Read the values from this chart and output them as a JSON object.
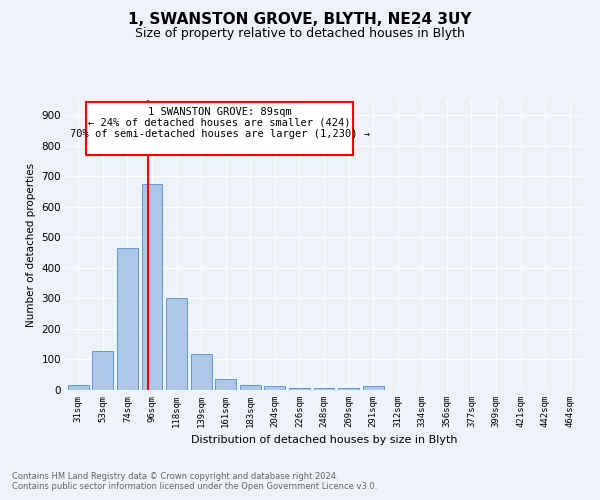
{
  "title": "1, SWANSTON GROVE, BLYTH, NE24 3UY",
  "subtitle": "Size of property relative to detached houses in Blyth",
  "xlabel": "Distribution of detached houses by size in Blyth",
  "ylabel": "Number of detached properties",
  "footnote1": "Contains HM Land Registry data © Crown copyright and database right 2024.",
  "footnote2": "Contains public sector information licensed under the Open Government Licence v3.0.",
  "annotation_line1": "1 SWANSTON GROVE: 89sqm",
  "annotation_line2": "← 24% of detached houses are smaller (424)",
  "annotation_line3": "70% of semi-detached houses are larger (1,230) →",
  "bar_labels": [
    "31sqm",
    "53sqm",
    "74sqm",
    "96sqm",
    "118sqm",
    "139sqm",
    "161sqm",
    "183sqm",
    "204sqm",
    "226sqm",
    "248sqm",
    "269sqm",
    "291sqm",
    "312sqm",
    "334sqm",
    "356sqm",
    "377sqm",
    "399sqm",
    "421sqm",
    "442sqm",
    "464sqm"
  ],
  "bar_values": [
    18,
    127,
    465,
    675,
    302,
    118,
    35,
    18,
    13,
    8,
    8,
    8,
    12,
    0,
    0,
    0,
    0,
    0,
    0,
    0,
    0
  ],
  "bar_color": "#aec6e8",
  "bar_edge_color": "#5b9bd5",
  "red_line_x": 2.85,
  "ylim": [
    0,
    950
  ],
  "yticks": [
    0,
    100,
    200,
    300,
    400,
    500,
    600,
    700,
    800,
    900
  ],
  "background_color": "#eef2f9",
  "grid_color": "#ffffff",
  "title_fontsize": 11,
  "subtitle_fontsize": 9,
  "footnote_color": "#666666"
}
